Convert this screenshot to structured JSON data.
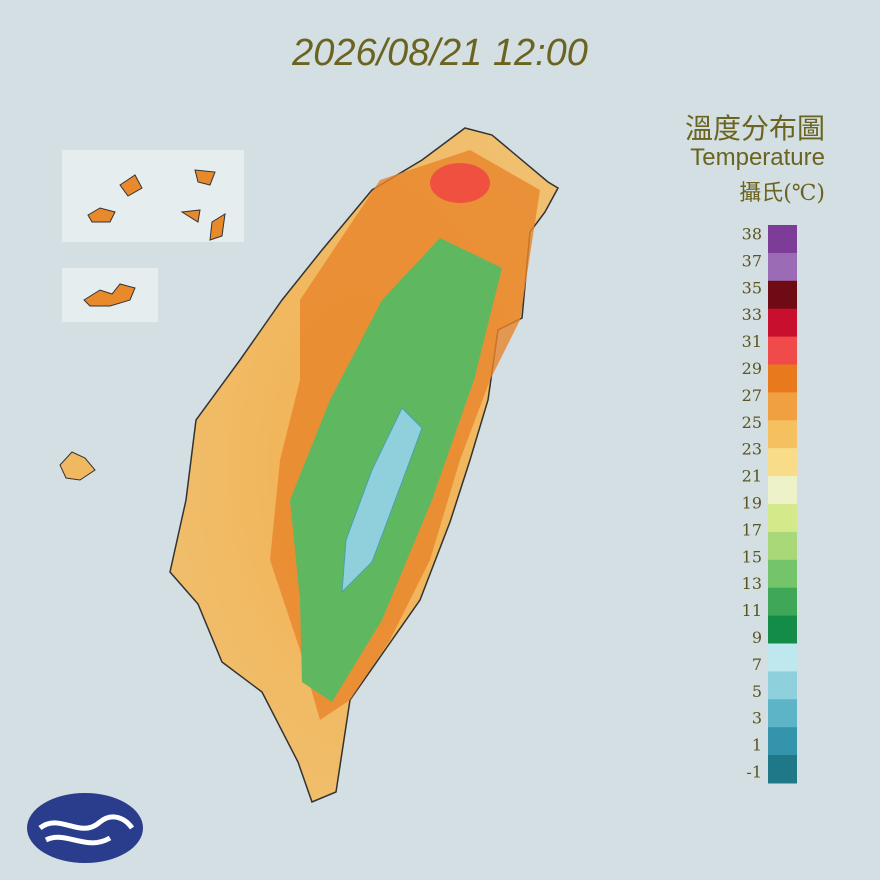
{
  "timestamp": "2026/08/21 12:00",
  "title": "溫度分布圖",
  "subtitle": "Temperature",
  "unit": "攝氏(℃)",
  "legend": {
    "ticks": [
      38,
      37,
      35,
      33,
      31,
      29,
      27,
      25,
      23,
      21,
      19,
      17,
      15,
      13,
      11,
      9,
      7,
      5,
      3,
      1,
      -1
    ],
    "colors": [
      "#7d3c98",
      "#9b6bb5",
      "#6e0b14",
      "#c8102e",
      "#f04a4a",
      "#e8791c",
      "#f0a040",
      "#f5c060",
      "#f8dc8a",
      "#eef2c8",
      "#d4ea8a",
      "#a8d878",
      "#74c46a",
      "#3fa858",
      "#138c48",
      "#bfe8ee",
      "#8ed0dc",
      "#5cb4c6",
      "#3494ac",
      "#1f7888"
    ]
  }
}
